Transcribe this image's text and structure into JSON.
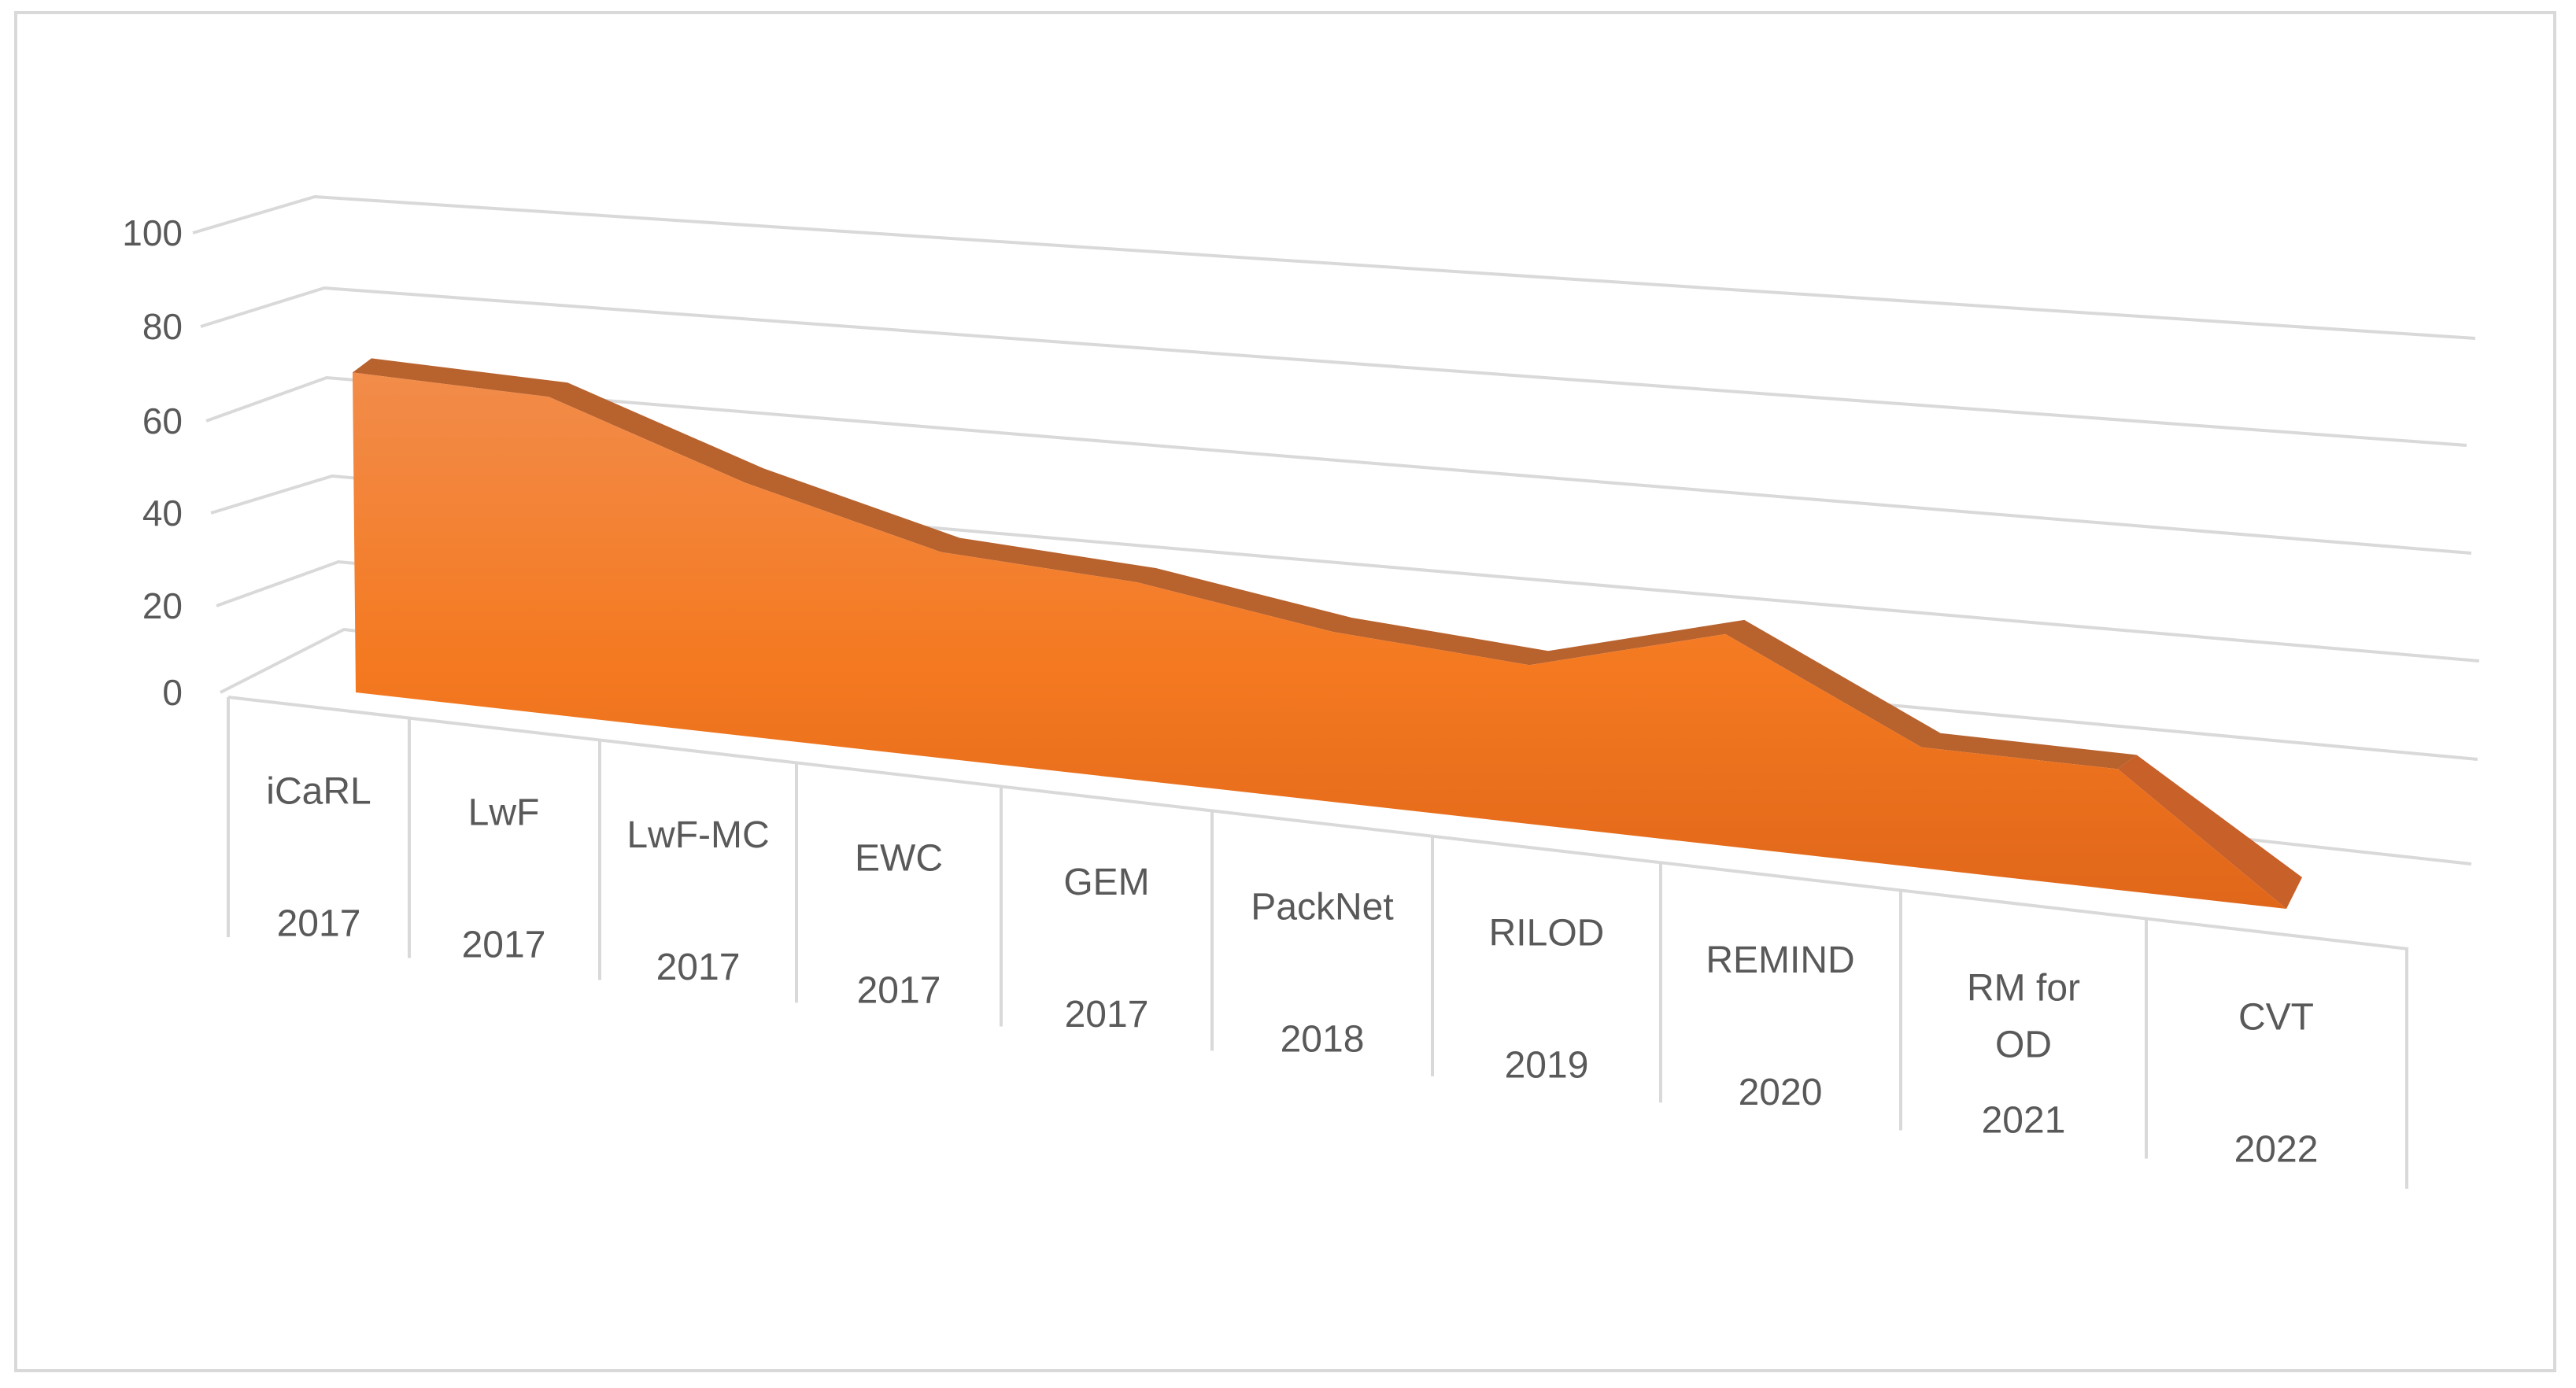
{
  "chart_data": {
    "type": "area",
    "style": "3d",
    "categories": [
      [
        "iCaRL",
        "2017"
      ],
      [
        "LwF",
        "2017"
      ],
      [
        "LwF-MC",
        "2017"
      ],
      [
        "EWC",
        "2017"
      ],
      [
        "GEM",
        "2017"
      ],
      [
        "PackNet",
        "2018"
      ],
      [
        "RILOD",
        "2019"
      ],
      [
        "REMIND",
        "2020"
      ],
      [
        "RM for OD",
        "2021"
      ],
      [
        "CVT",
        "2022"
      ]
    ],
    "series": [
      {
        "values": [
          68,
          70,
          58,
          49,
          49,
          44,
          43,
          60,
          36,
          38
        ]
      }
    ],
    "ylim": [
      0,
      100
    ],
    "yticks": [
      "0",
      "20",
      "40",
      "60",
      "80",
      "100"
    ],
    "grid": true,
    "legend": "none",
    "title": "",
    "xlabel": "",
    "ylabel": "",
    "colors": {
      "fill_top": "#f28c4a",
      "fill_mid": "#f47920",
      "fill_bottom": "#e0661a",
      "edge": "#b8622e",
      "side": "#c8602a",
      "grid": "#d9d9d9",
      "text": "#595959"
    }
  }
}
